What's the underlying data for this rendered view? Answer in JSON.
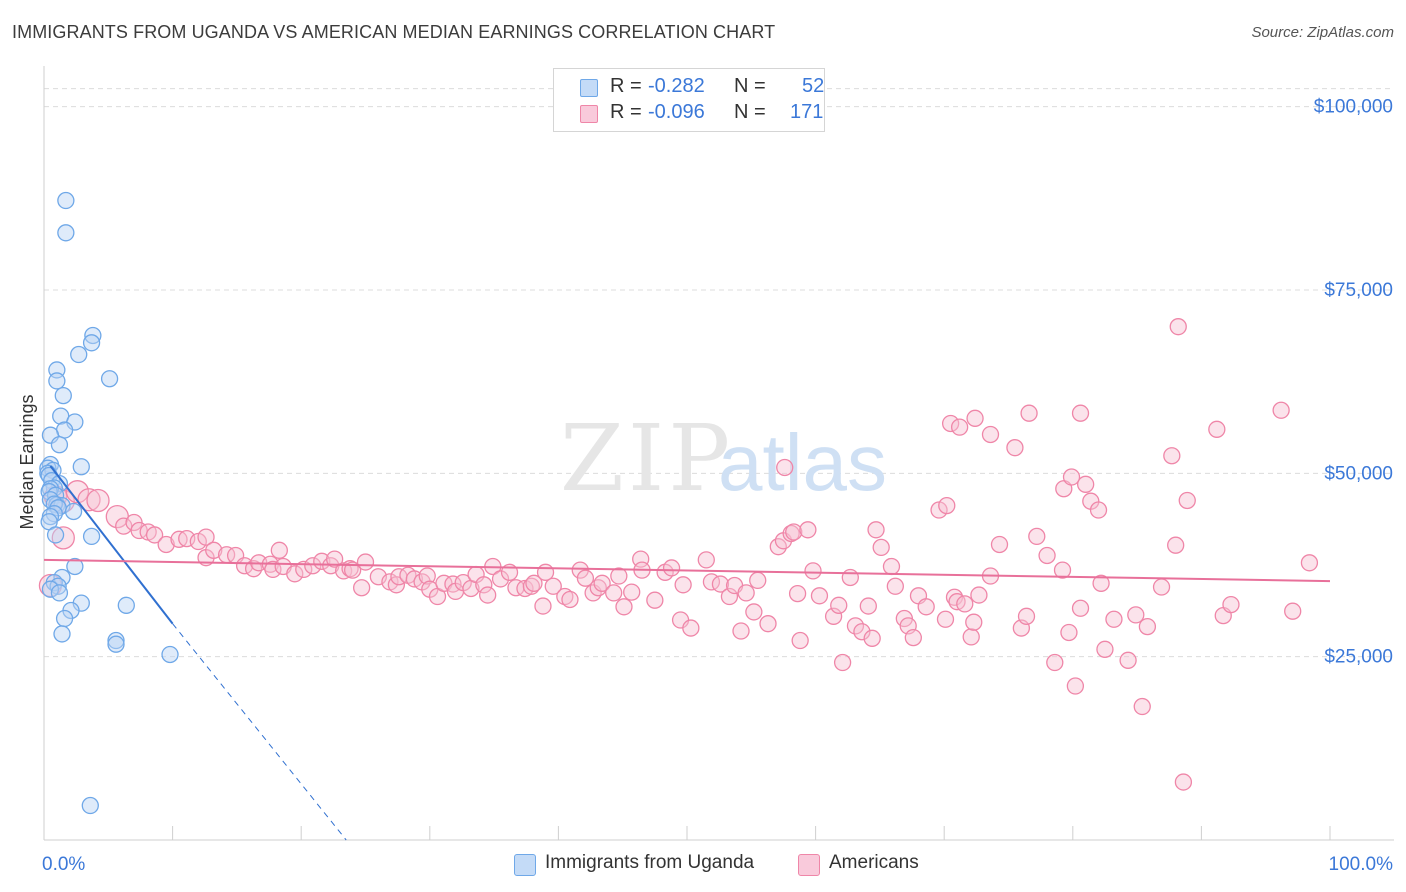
{
  "title": "IMMIGRANTS FROM UGANDA VS AMERICAN MEDIAN EARNINGS CORRELATION CHART",
  "source": "Source: ZipAtlas.com",
  "watermark": {
    "zip": "ZIP",
    "atlas": "atlas"
  },
  "colors": {
    "blue": "#6fa8e8",
    "blue_fill": "#b9d3f5",
    "blue_line": "#3070d0",
    "pink": "#ef86a8",
    "pink_fill": "#f7c0d2",
    "pink_line": "#e8709a",
    "axis_text": "#3b78d8",
    "grid": "#dcdcdc"
  },
  "legend": {
    "rows": [
      {
        "r_label": "R =",
        "r_value": "-0.282",
        "n_label": "N =",
        "n_value": "52",
        "color": "#6fa8e8",
        "fill": "#c4dbf7"
      },
      {
        "r_label": "R =",
        "r_value": "-0.096",
        "n_label": "N =",
        "n_value": "171",
        "color": "#ef86a8",
        "fill": "#f9cadb"
      }
    ]
  },
  "bottom_legend": [
    {
      "label": "Immigrants from Uganda",
      "color": "#6fa8e8",
      "fill": "#c4dbf7"
    },
    {
      "label": "Americans",
      "color": "#ef86a8",
      "fill": "#f9cadb"
    }
  ],
  "chart_data": {
    "type": "scatter",
    "title": "IMMIGRANTS FROM UGANDA VS AMERICAN MEDIAN EARNINGS CORRELATION CHART",
    "xlabel": "",
    "ylabel": "Median Earnings",
    "xlim": [
      0,
      100
    ],
    "ylim": [
      0,
      105000
    ],
    "x_tick_labels": [
      "0.0%",
      "100.0%"
    ],
    "y_ticks": [
      25000,
      50000,
      75000,
      100000
    ],
    "y_tick_labels": [
      "$25,000",
      "$50,000",
      "$75,000",
      "$100,000"
    ],
    "series": [
      {
        "name": "Immigrants from Uganda",
        "R": -0.282,
        "N": 52,
        "trend": {
          "x": [
            0.5,
            10
          ],
          "y": [
            51000,
            29500
          ],
          "dashed_to": [
            23.5,
            0
          ]
        },
        "points": [
          [
            1.7,
            87200
          ],
          [
            1.7,
            82800
          ],
          [
            3.8,
            68800
          ],
          [
            3.7,
            67800
          ],
          [
            2.7,
            66200
          ],
          [
            1.0,
            64100
          ],
          [
            5.1,
            62900
          ],
          [
            1.0,
            62600
          ],
          [
            1.5,
            60600
          ],
          [
            1.3,
            57800
          ],
          [
            2.4,
            57000
          ],
          [
            1.6,
            55900
          ],
          [
            0.5,
            55200
          ],
          [
            1.2,
            53900
          ],
          [
            0.5,
            51200
          ],
          [
            0.3,
            50700
          ],
          [
            2.9,
            50900
          ],
          [
            0.7,
            50400
          ],
          [
            0.3,
            50000
          ],
          [
            0.4,
            49700
          ],
          [
            0.6,
            49000
          ],
          [
            1.2,
            48600
          ],
          [
            0.8,
            48000
          ],
          [
            0.5,
            47900
          ],
          [
            0.4,
            47500
          ],
          [
            0.9,
            47000
          ],
          [
            0.5,
            46400
          ],
          [
            1.0,
            45700
          ],
          [
            1.4,
            45600
          ],
          [
            0.8,
            45800
          ],
          [
            1.1,
            45300
          ],
          [
            2.3,
            44800
          ],
          [
            0.8,
            44500
          ],
          [
            0.5,
            44100
          ],
          [
            0.4,
            43400
          ],
          [
            0.9,
            41600
          ],
          [
            3.7,
            41400
          ],
          [
            2.4,
            37300
          ],
          [
            1.4,
            35800
          ],
          [
            0.8,
            35100
          ],
          [
            1.1,
            34600
          ],
          [
            0.5,
            34200
          ],
          [
            1.2,
            33700
          ],
          [
            2.9,
            32300
          ],
          [
            6.4,
            32000
          ],
          [
            2.1,
            31300
          ],
          [
            1.6,
            30200
          ],
          [
            1.4,
            28100
          ],
          [
            5.6,
            27200
          ],
          [
            5.6,
            26700
          ],
          [
            9.8,
            25300
          ],
          [
            3.6,
            4700
          ]
        ]
      },
      {
        "name": "Americans",
        "R": -0.096,
        "N": 171,
        "trend": {
          "x": [
            0,
            100
          ],
          "y": [
            38200,
            35300
          ]
        },
        "points": [
          [
            0.9,
            46800
          ],
          [
            1.5,
            46200
          ],
          [
            2.6,
            47500
          ],
          [
            3.5,
            46400
          ],
          [
            4.2,
            46300
          ],
          [
            1.5,
            41200
          ],
          [
            0.5,
            34700
          ],
          [
            5.7,
            44100
          ],
          [
            6.2,
            42800
          ],
          [
            7.0,
            43300
          ],
          [
            7.4,
            42200
          ],
          [
            8.1,
            42000
          ],
          [
            8.6,
            41600
          ],
          [
            9.5,
            40300
          ],
          [
            10.5,
            41000
          ],
          [
            11.1,
            41100
          ],
          [
            12.0,
            40700
          ],
          [
            12.6,
            41300
          ],
          [
            12.6,
            38500
          ],
          [
            13.2,
            39500
          ],
          [
            14.2,
            38900
          ],
          [
            14.9,
            38800
          ],
          [
            15.6,
            37400
          ],
          [
            16.3,
            37000
          ],
          [
            16.7,
            37800
          ],
          [
            17.6,
            37600
          ],
          [
            17.8,
            36900
          ],
          [
            18.3,
            39500
          ],
          [
            18.6,
            37300
          ],
          [
            19.5,
            36300
          ],
          [
            20.2,
            36900
          ],
          [
            20.9,
            37400
          ],
          [
            21.6,
            38000
          ],
          [
            22.3,
            37400
          ],
          [
            22.6,
            38300
          ],
          [
            23.3,
            36700
          ],
          [
            23.8,
            37000
          ],
          [
            24.0,
            36800
          ],
          [
            24.7,
            34400
          ],
          [
            25.0,
            37900
          ],
          [
            26.0,
            35900
          ],
          [
            26.9,
            35200
          ],
          [
            27.4,
            34800
          ],
          [
            27.6,
            35900
          ],
          [
            28.3,
            36100
          ],
          [
            28.8,
            35600
          ],
          [
            29.4,
            35200
          ],
          [
            29.8,
            36000
          ],
          [
            30.0,
            34200
          ],
          [
            30.6,
            33200
          ],
          [
            31.1,
            35000
          ],
          [
            31.8,
            34900
          ],
          [
            32.0,
            33900
          ],
          [
            32.6,
            35100
          ],
          [
            33.2,
            34300
          ],
          [
            33.6,
            36200
          ],
          [
            34.2,
            34800
          ],
          [
            34.5,
            33400
          ],
          [
            34.9,
            37300
          ],
          [
            35.5,
            35600
          ],
          [
            36.2,
            36500
          ],
          [
            36.7,
            34400
          ],
          [
            37.4,
            34300
          ],
          [
            37.9,
            34600
          ],
          [
            38.1,
            35000
          ],
          [
            38.8,
            31900
          ],
          [
            39.0,
            36500
          ],
          [
            39.6,
            34600
          ],
          [
            40.5,
            33200
          ],
          [
            40.9,
            32800
          ],
          [
            41.7,
            36800
          ],
          [
            42.1,
            35700
          ],
          [
            42.7,
            33700
          ],
          [
            43.1,
            34400
          ],
          [
            43.4,
            35000
          ],
          [
            44.3,
            33700
          ],
          [
            44.7,
            36000
          ],
          [
            45.1,
            31800
          ],
          [
            45.7,
            33800
          ],
          [
            46.4,
            38300
          ],
          [
            46.5,
            36800
          ],
          [
            47.5,
            32700
          ],
          [
            48.3,
            36500
          ],
          [
            48.8,
            37100
          ],
          [
            49.5,
            30000
          ],
          [
            49.7,
            34800
          ],
          [
            50.3,
            28900
          ],
          [
            51.5,
            38200
          ],
          [
            51.9,
            35200
          ],
          [
            52.6,
            34900
          ],
          [
            53.3,
            33200
          ],
          [
            53.7,
            34700
          ],
          [
            54.2,
            28500
          ],
          [
            54.6,
            33700
          ],
          [
            55.2,
            31100
          ],
          [
            55.5,
            35400
          ],
          [
            56.3,
            29500
          ],
          [
            57.1,
            40000
          ],
          [
            57.5,
            40800
          ],
          [
            57.6,
            50800
          ],
          [
            58.1,
            41800
          ],
          [
            58.3,
            42000
          ],
          [
            58.6,
            33600
          ],
          [
            58.8,
            27200
          ],
          [
            59.4,
            42300
          ],
          [
            59.8,
            36700
          ],
          [
            60.3,
            33300
          ],
          [
            61.4,
            30500
          ],
          [
            61.8,
            32000
          ],
          [
            62.1,
            24200
          ],
          [
            62.7,
            35800
          ],
          [
            63.1,
            29200
          ],
          [
            63.6,
            28400
          ],
          [
            64.1,
            31900
          ],
          [
            64.4,
            27500
          ],
          [
            64.7,
            42300
          ],
          [
            65.1,
            39900
          ],
          [
            65.9,
            37300
          ],
          [
            66.2,
            34600
          ],
          [
            66.9,
            30200
          ],
          [
            67.2,
            29200
          ],
          [
            67.6,
            27600
          ],
          [
            68.0,
            33300
          ],
          [
            68.6,
            31800
          ],
          [
            69.6,
            45000
          ],
          [
            70.1,
            30100
          ],
          [
            70.2,
            45600
          ],
          [
            70.8,
            33100
          ],
          [
            71.0,
            32500
          ],
          [
            71.6,
            32200
          ],
          [
            72.1,
            27700
          ],
          [
            72.3,
            29700
          ],
          [
            72.7,
            33400
          ],
          [
            73.6,
            36000
          ],
          [
            74.3,
            40300
          ],
          [
            76.0,
            28900
          ],
          [
            76.4,
            30500
          ],
          [
            77.2,
            41400
          ],
          [
            78.0,
            38800
          ],
          [
            78.6,
            24200
          ],
          [
            79.2,
            36800
          ],
          [
            79.7,
            28300
          ],
          [
            80.2,
            21000
          ],
          [
            80.6,
            31600
          ],
          [
            82.2,
            35000
          ],
          [
            82.5,
            26000
          ],
          [
            83.2,
            30100
          ],
          [
            84.3,
            24500
          ],
          [
            84.9,
            30700
          ],
          [
            85.4,
            18200
          ],
          [
            85.8,
            29100
          ],
          [
            86.9,
            34500
          ],
          [
            87.7,
            52400
          ],
          [
            88.0,
            40200
          ],
          [
            88.2,
            70000
          ],
          [
            88.6,
            7900
          ],
          [
            88.9,
            46300
          ],
          [
            91.2,
            56000
          ],
          [
            91.7,
            30600
          ],
          [
            92.3,
            32100
          ],
          [
            96.2,
            58600
          ],
          [
            97.1,
            31200
          ],
          [
            98.4,
            37800
          ],
          [
            70.5,
            56800
          ],
          [
            71.2,
            56300
          ],
          [
            72.4,
            57500
          ],
          [
            73.6,
            55300
          ],
          [
            76.6,
            58200
          ],
          [
            80.6,
            58200
          ],
          [
            81.0,
            48500
          ],
          [
            81.4,
            46200
          ],
          [
            82.0,
            45000
          ],
          [
            79.3,
            47900
          ],
          [
            75.5,
            53500
          ],
          [
            79.9,
            49500
          ]
        ]
      }
    ]
  }
}
